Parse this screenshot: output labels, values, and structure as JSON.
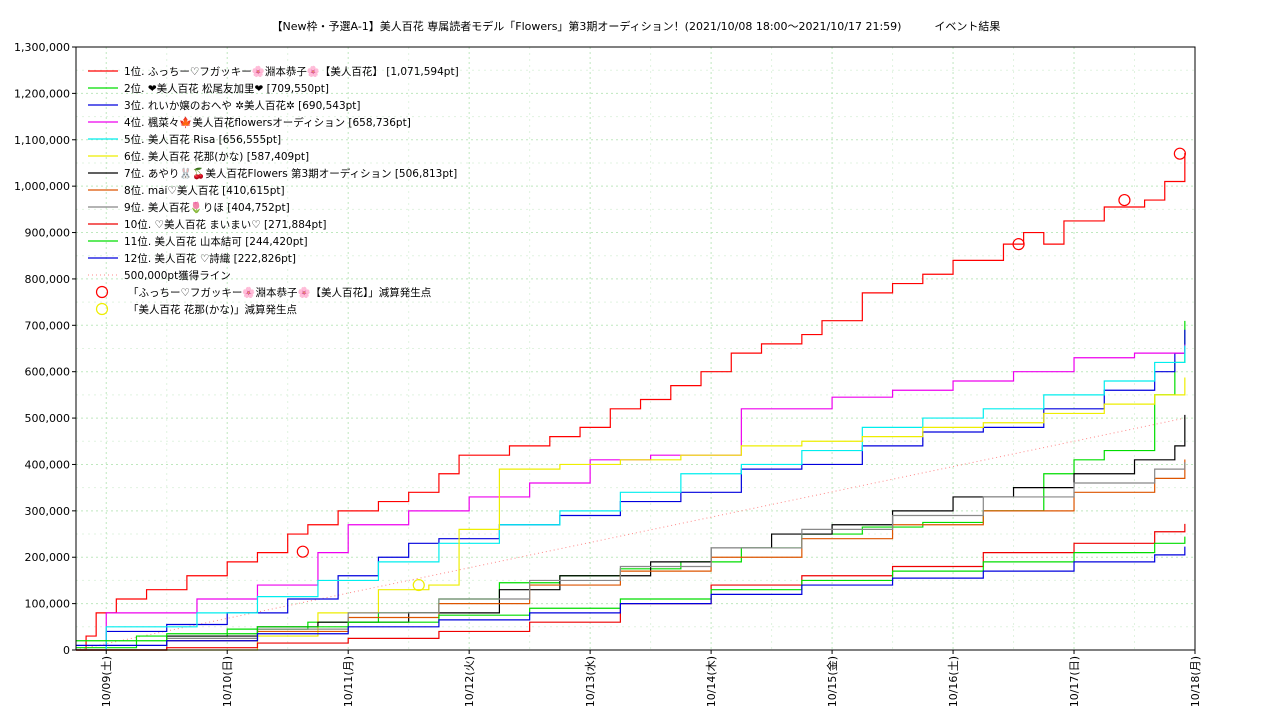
{
  "chart_data": {
    "type": "line",
    "title": "【New枠・予選A-1】美人百花 専属読者モデル「Flowers」第3期オーディション！(2021/10/08 18:00〜2021/10/17 21:59)　　　イベント結果",
    "ylim": [
      0,
      1300000
    ],
    "xlim": [
      "2021-10-08T18:00",
      "2021-10-18T00:00"
    ],
    "yticks": [
      "0",
      "100,000",
      "200,000",
      "300,000",
      "400,000",
      "500,000",
      "600,000",
      "700,000",
      "800,000",
      "900,000",
      "1,000,000",
      "1,100,000",
      "1,200,000",
      "1,300,000"
    ],
    "xticks": [
      "10/09(土)",
      "10/10(日)",
      "10/11(月)",
      "10/12(火)",
      "10/13(水)",
      "10/14(木)",
      "10/15(金)",
      "10/16(土)",
      "10/17(日)",
      "10/18(月)"
    ],
    "grid": true,
    "legend_position": "top-left",
    "series": [
      {
        "name": "1位. ふっちー♡フガッキー🌸淵本恭子🌸【美人百花】 [1,071,594pt]",
        "color": "#ff0000",
        "x": [
          "2021-10-08T18:00",
          "2021-10-08T20:00",
          "2021-10-08T22:00",
          "2021-10-09T02:00",
          "2021-10-09T08:00",
          "2021-10-09T16:00",
          "2021-10-10T00:00",
          "2021-10-10T06:00",
          "2021-10-10T12:00",
          "2021-10-10T16:00",
          "2021-10-10T22:00",
          "2021-10-11T06:00",
          "2021-10-11T12:00",
          "2021-10-11T18:00",
          "2021-10-11T22:00",
          "2021-10-12T00:00",
          "2021-10-12T08:00",
          "2021-10-12T16:00",
          "2021-10-12T22:00",
          "2021-10-13T04:00",
          "2021-10-13T10:00",
          "2021-10-13T16:00",
          "2021-10-13T22:00",
          "2021-10-14T04:00",
          "2021-10-14T10:00",
          "2021-10-14T18:00",
          "2021-10-14T22:00",
          "2021-10-15T06:00",
          "2021-10-15T12:00",
          "2021-10-15T18:00",
          "2021-10-16T00:00",
          "2021-10-16T10:00",
          "2021-10-16T14:00",
          "2021-10-16T18:00",
          "2021-10-16T22:00",
          "2021-10-17T06:00",
          "2021-10-17T14:00",
          "2021-10-17T18:00",
          "2021-10-17T21:59"
        ],
        "y": [
          0,
          30000,
          80000,
          110000,
          130000,
          160000,
          190000,
          210000,
          250000,
          270000,
          300000,
          320000,
          340000,
          380000,
          420000,
          420000,
          440000,
          460000,
          480000,
          520000,
          540000,
          570000,
          600000,
          640000,
          660000,
          680000,
          710000,
          770000,
          790000,
          810000,
          840000,
          875000,
          900000,
          875000,
          925000,
          955000,
          970000,
          1010000,
          1071594
        ]
      },
      {
        "name": "2位. ❤美人百花 松尾友加里❤ [709,550pt]",
        "color": "#00dd00",
        "x": [
          "2021-10-08T18:00",
          "2021-10-09T06:00",
          "2021-10-10T00:00",
          "2021-10-10T16:00",
          "2021-10-11T06:00",
          "2021-10-11T18:00",
          "2021-10-12T06:00",
          "2021-10-12T18:00",
          "2021-10-13T06:00",
          "2021-10-13T18:00",
          "2021-10-14T06:00",
          "2021-10-14T18:00",
          "2021-10-15T06:00",
          "2021-10-15T18:00",
          "2021-10-16T06:00",
          "2021-10-16T18:00",
          "2021-10-17T00:00",
          "2021-10-17T06:00",
          "2021-10-17T16:00",
          "2021-10-17T20:00",
          "2021-10-17T21:59"
        ],
        "y": [
          5000,
          30000,
          45000,
          60000,
          80000,
          110000,
          145000,
          160000,
          175000,
          190000,
          220000,
          250000,
          265000,
          275000,
          300000,
          380000,
          410000,
          430000,
          550000,
          620000,
          709550
        ]
      },
      {
        "name": "3位. れいか嬢のおへや ✲美人百花✲ [690,543pt]",
        "color": "#0000dd",
        "x": [
          "2021-10-08T18:00",
          "2021-10-09T00:00",
          "2021-10-09T12:00",
          "2021-10-10T00:00",
          "2021-10-10T12:00",
          "2021-10-10T22:00",
          "2021-10-11T06:00",
          "2021-10-11T12:00",
          "2021-10-11T18:00",
          "2021-10-12T06:00",
          "2021-10-12T18:00",
          "2021-10-13T06:00",
          "2021-10-13T18:00",
          "2021-10-14T06:00",
          "2021-10-14T18:00",
          "2021-10-15T06:00",
          "2021-10-15T18:00",
          "2021-10-16T06:00",
          "2021-10-16T18:00",
          "2021-10-17T06:00",
          "2021-10-17T16:00",
          "2021-10-17T20:00",
          "2021-10-17T21:59"
        ],
        "y": [
          0,
          40000,
          55000,
          80000,
          110000,
          160000,
          200000,
          230000,
          240000,
          270000,
          290000,
          320000,
          340000,
          390000,
          400000,
          440000,
          470000,
          480000,
          520000,
          560000,
          600000,
          640000,
          690543
        ]
      },
      {
        "name": "4位. 楓菜々🍁美人百花flowersオーディション [658,736pt]",
        "color": "#ee00ee",
        "x": [
          "2021-10-08T18:00",
          "2021-10-09T00:00",
          "2021-10-09T18:00",
          "2021-10-10T06:00",
          "2021-10-10T18:00",
          "2021-10-11T00:00",
          "2021-10-11T12:00",
          "2021-10-12T00:00",
          "2021-10-12T12:00",
          "2021-10-13T00:00",
          "2021-10-13T12:00",
          "2021-10-14T00:00",
          "2021-10-14T06:00",
          "2021-10-14T12:00",
          "2021-10-15T00:00",
          "2021-10-15T12:00",
          "2021-10-16T00:00",
          "2021-10-16T12:00",
          "2021-10-17T00:00",
          "2021-10-17T12:00",
          "2021-10-17T21:59"
        ],
        "y": [
          0,
          80000,
          110000,
          140000,
          210000,
          270000,
          300000,
          330000,
          360000,
          410000,
          420000,
          420000,
          520000,
          520000,
          545000,
          560000,
          580000,
          600000,
          630000,
          640000,
          658736
        ]
      },
      {
        "name": "5位. 美人百花 Risa [656,555pt]",
        "color": "#00eeee",
        "x": [
          "2021-10-08T18:00",
          "2021-10-09T00:00",
          "2021-10-09T18:00",
          "2021-10-10T06:00",
          "2021-10-10T18:00",
          "2021-10-11T06:00",
          "2021-10-11T18:00",
          "2021-10-12T06:00",
          "2021-10-12T18:00",
          "2021-10-13T06:00",
          "2021-10-13T18:00",
          "2021-10-14T06:00",
          "2021-10-14T18:00",
          "2021-10-15T06:00",
          "2021-10-15T18:00",
          "2021-10-16T06:00",
          "2021-10-16T18:00",
          "2021-10-17T06:00",
          "2021-10-17T16:00",
          "2021-10-17T21:59"
        ],
        "y": [
          0,
          50000,
          80000,
          115000,
          150000,
          190000,
          230000,
          270000,
          300000,
          340000,
          380000,
          400000,
          430000,
          480000,
          500000,
          520000,
          550000,
          580000,
          620000,
          656555
        ]
      },
      {
        "name": "6位. 美人百花 花那(かな) [587,409pt]",
        "color": "#eeee00",
        "x": [
          "2021-10-08T18:00",
          "2021-10-09T18:00",
          "2021-10-10T06:00",
          "2021-10-10T18:00",
          "2021-10-11T06:00",
          "2021-10-11T16:00",
          "2021-10-11T22:00",
          "2021-10-12T06:00",
          "2021-10-12T18:00",
          "2021-10-13T06:00",
          "2021-10-13T18:00",
          "2021-10-14T06:00",
          "2021-10-14T18:00",
          "2021-10-15T06:00",
          "2021-10-15T18:00",
          "2021-10-16T06:00",
          "2021-10-16T18:00",
          "2021-10-17T06:00",
          "2021-10-17T16:00",
          "2021-10-17T21:59"
        ],
        "y": [
          0,
          0,
          30000,
          80000,
          130000,
          140000,
          260000,
          390000,
          400000,
          410000,
          420000,
          440000,
          450000,
          460000,
          480000,
          490000,
          510000,
          530000,
          550000,
          587409
        ]
      },
      {
        "name": "7位. あやり🐰🍒美人百花Flowers 第3期オーディション [506,813pt]",
        "color": "#000000",
        "x": [
          "2021-10-08T18:00",
          "2021-10-09T12:00",
          "2021-10-10T06:00",
          "2021-10-10T18:00",
          "2021-10-11T12:00",
          "2021-10-12T06:00",
          "2021-10-12T18:00",
          "2021-10-13T12:00",
          "2021-10-14T00:00",
          "2021-10-14T12:00",
          "2021-10-15T00:00",
          "2021-10-15T12:00",
          "2021-10-16T00:00",
          "2021-10-16T12:00",
          "2021-10-17T00:00",
          "2021-10-17T12:00",
          "2021-10-17T20:00",
          "2021-10-17T21:59"
        ],
        "y": [
          0,
          30000,
          50000,
          60000,
          80000,
          130000,
          160000,
          190000,
          220000,
          250000,
          270000,
          300000,
          330000,
          350000,
          380000,
          410000,
          440000,
          506813
        ]
      },
      {
        "name": "8位. mai♡美人百花 [410,615pt]",
        "color": "#dd5500",
        "x": [
          "2021-10-08T18:00",
          "2021-10-09T12:00",
          "2021-10-10T06:00",
          "2021-10-11T00:00",
          "2021-10-11T18:00",
          "2021-10-12T12:00",
          "2021-10-13T06:00",
          "2021-10-14T00:00",
          "2021-10-14T18:00",
          "2021-10-15T12:00",
          "2021-10-16T06:00",
          "2021-10-17T00:00",
          "2021-10-17T16:00",
          "2021-10-17T21:59"
        ],
        "y": [
          0,
          20000,
          40000,
          70000,
          100000,
          140000,
          170000,
          200000,
          240000,
          270000,
          300000,
          340000,
          370000,
          410615
        ]
      },
      {
        "name": "9位. 美人百花🌷りほ [404,752pt]",
        "color": "#888888",
        "x": [
          "2021-10-08T18:00",
          "2021-10-09T12:00",
          "2021-10-10T06:00",
          "2021-10-11T00:00",
          "2021-10-11T18:00",
          "2021-10-12T12:00",
          "2021-10-13T06:00",
          "2021-10-14T00:00",
          "2021-10-14T18:00",
          "2021-10-15T12:00",
          "2021-10-16T06:00",
          "2021-10-17T00:00",
          "2021-10-17T16:00",
          "2021-10-17T21:59"
        ],
        "y": [
          0,
          25000,
          45000,
          80000,
          110000,
          150000,
          180000,
          220000,
          260000,
          290000,
          330000,
          360000,
          390000,
          404752
        ]
      },
      {
        "name": "10位. ♡美人百花 まいまい♡ [271,884pt]",
        "color": "#ee0000",
        "x": [
          "2021-10-08T18:00",
          "2021-10-09T12:00",
          "2021-10-10T06:00",
          "2021-10-11T00:00",
          "2021-10-11T18:00",
          "2021-10-12T12:00",
          "2021-10-13T06:00",
          "2021-10-14T00:00",
          "2021-10-14T18:00",
          "2021-10-15T12:00",
          "2021-10-16T06:00",
          "2021-10-17T00:00",
          "2021-10-17T16:00",
          "2021-10-17T21:59"
        ],
        "y": [
          0,
          5000,
          15000,
          25000,
          40000,
          60000,
          100000,
          140000,
          160000,
          180000,
          210000,
          230000,
          255000,
          271884
        ]
      },
      {
        "name": "11位. 美人百花 山本結可 [244,420pt]",
        "color": "#00dd00",
        "x": [
          "2021-10-08T18:00",
          "2021-10-09T12:00",
          "2021-10-10T06:00",
          "2021-10-11T00:00",
          "2021-10-11T18:00",
          "2021-10-12T12:00",
          "2021-10-13T06:00",
          "2021-10-14T00:00",
          "2021-10-14T18:00",
          "2021-10-15T12:00",
          "2021-10-16T06:00",
          "2021-10-17T00:00",
          "2021-10-17T16:00",
          "2021-10-17T21:59"
        ],
        "y": [
          20000,
          35000,
          50000,
          60000,
          75000,
          90000,
          110000,
          130000,
          150000,
          170000,
          190000,
          210000,
          230000,
          244420
        ]
      },
      {
        "name": "12位. 美人百花 ♡詩織 [222,826pt]",
        "color": "#0000dd",
        "x": [
          "2021-10-08T18:00",
          "2021-10-09T12:00",
          "2021-10-10T06:00",
          "2021-10-11T00:00",
          "2021-10-11T18:00",
          "2021-10-12T12:00",
          "2021-10-13T06:00",
          "2021-10-14T00:00",
          "2021-10-14T18:00",
          "2021-10-15T12:00",
          "2021-10-16T06:00",
          "2021-10-17T00:00",
          "2021-10-17T16:00",
          "2021-10-17T21:59"
        ],
        "y": [
          10000,
          20000,
          35000,
          50000,
          65000,
          80000,
          100000,
          120000,
          140000,
          155000,
          170000,
          190000,
          205000,
          222826
        ]
      }
    ],
    "reference_line": {
      "name": "500,000pt獲得ライン",
      "color": "#ff8888",
      "x": [
        "2021-10-08T18:00",
        "2021-10-17T21:59"
      ],
      "y": [
        0,
        500000
      ]
    },
    "markers": [
      {
        "name": "「ふっちー♡フガッキー🌸淵本恭子🌸【美人百花】」減算発生点",
        "color": "#ff0000",
        "points": [
          {
            "x": "2021-10-10T15:00",
            "y": 212000
          },
          {
            "x": "2021-10-16T13:00",
            "y": 875000
          },
          {
            "x": "2021-10-17T10:00",
            "y": 970000
          },
          {
            "x": "2021-10-17T21:00",
            "y": 1070000
          }
        ]
      },
      {
        "name": "「美人百花 花那(かな)」減算発生点",
        "color": "#eeee00",
        "points": [
          {
            "x": "2021-10-11T14:00",
            "y": 140000
          }
        ]
      }
    ]
  }
}
